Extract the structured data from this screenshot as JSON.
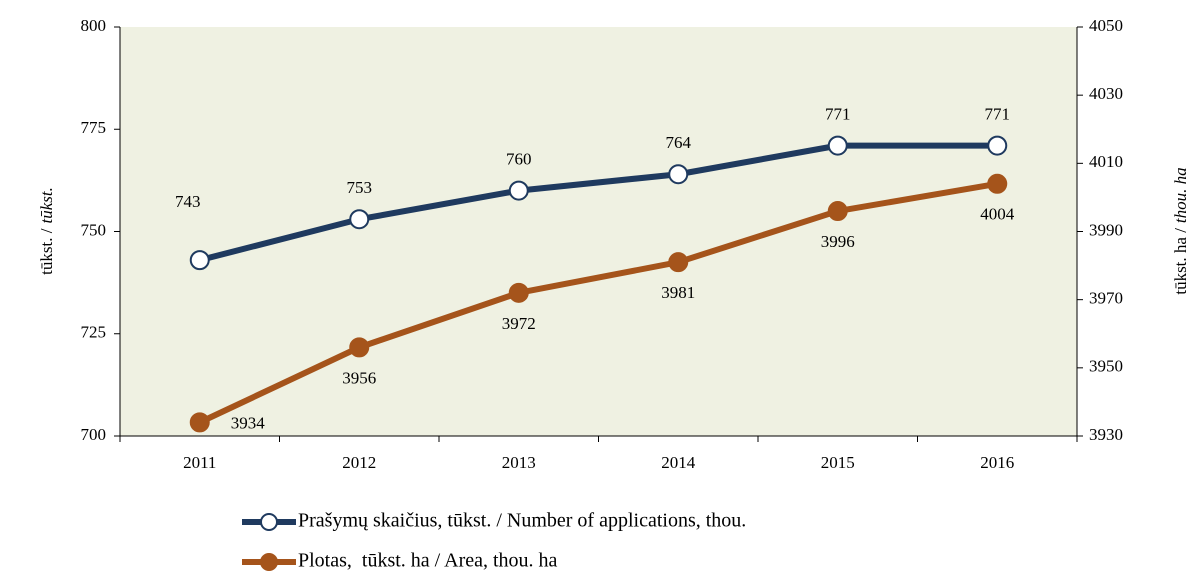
{
  "chart_data": {
    "type": "line",
    "categories": [
      "2011",
      "2012",
      "2013",
      "2014",
      "2015",
      "2016"
    ],
    "series": [
      {
        "name": "Prašymų skaičius, tūkst. / Number of applications, thou.",
        "color": "#1f3a5f",
        "values": [
          743,
          753,
          760,
          764,
          771,
          771
        ]
      },
      {
        "name": "Plotas,  tūkst. ha / Area, thou. ha",
        "color": "#a5541b",
        "values": [
          3934,
          3956,
          3972,
          3981,
          3996,
          4004
        ],
        "axis": "y2"
      }
    ],
    "ylabel": [
      "tūkst. /",
      "tūkst."
    ],
    "y2label": [
      "tūkst. ha /",
      "thou. ha"
    ],
    "ylim": [
      700,
      800
    ],
    "yticks": [
      700,
      725,
      750,
      775,
      800
    ],
    "y2lim": [
      3930,
      4050
    ],
    "y2ticks": [
      3930,
      3950,
      3970,
      3990,
      4010,
      4030,
      4050
    ],
    "legend": "bottom",
    "plot_background": "#eff1e2"
  }
}
